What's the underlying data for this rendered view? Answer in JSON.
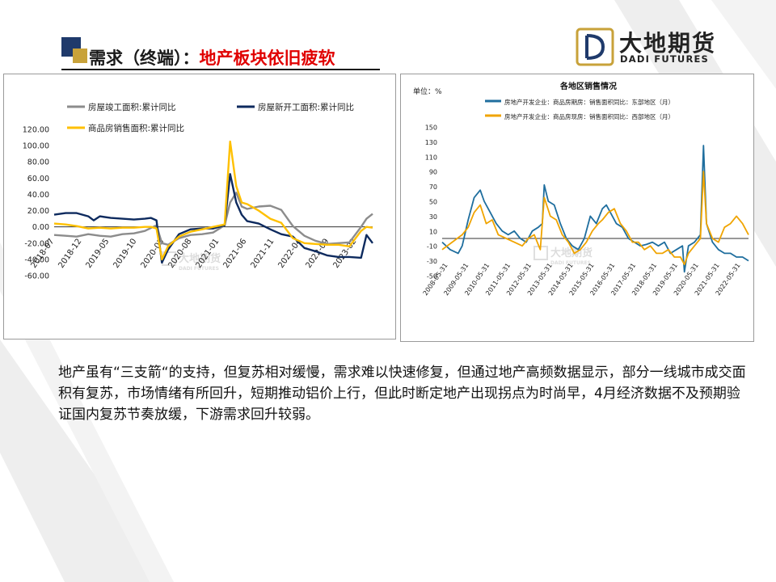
{
  "header": {
    "title_prefix": "需求（终端）：",
    "title_highlight": "地产板块依旧疲软"
  },
  "logo": {
    "cn": "大地期货",
    "en": "DADI FUTURES",
    "watermark_cn": "大地期货",
    "watermark_en": "DADI FUTURES"
  },
  "body_text": "地产虽有“三支箭“的支持，但复苏相对缓慢，需求难以快速修复，但通过地产高频数据显示，部分一线城市成交面积有复苏，市场情绪有所回升，短期推动铝价上行，但此时断定地产出现拐点为时尚早，4月经济数据不及预期验证国内复苏节奏放缓，下游需求回升较弱。",
  "colors": {
    "title_highlight": "#e00000",
    "deco_gray": "#eeeeee",
    "mark_navy": "#1f3a6b",
    "mark_gold": "#c8a23a"
  },
  "chart_data": [
    {
      "type": "line",
      "title": "",
      "xlabel": "",
      "ylabel": "",
      "ylim": [
        -60,
        120
      ],
      "yticks": [
        "120.00",
        "100.00",
        "80.00",
        "60.00",
        "40.00",
        "20.00",
        "0.00",
        "-20.00",
        "-40.00",
        "-60.00"
      ],
      "categories": [
        "2018-07",
        "2018-12",
        "2019-05",
        "2019-10",
        "2020-03",
        "2020-08",
        "2021-01",
        "2021-06",
        "2021-11",
        "2022-04",
        "2022-09",
        "2023-02"
      ],
      "x_range": [
        2018.5,
        2023.17
      ],
      "grid": false,
      "legend": "top",
      "series": [
        {
          "name": "房屋竣工面积:累计同比",
          "color": "#8c8c8c",
          "x": [
            2018.5,
            2018.67,
            2018.83,
            2019.0,
            2019.17,
            2019.33,
            2019.5,
            2019.67,
            2019.83,
            2020.0,
            2020.08,
            2020.17,
            2020.33,
            2020.5,
            2020.67,
            2020.83,
            2021.0,
            2021.08,
            2021.17,
            2021.25,
            2021.33,
            2021.5,
            2021.67,
            2021.83,
            2022.0,
            2022.17,
            2022.33,
            2022.5,
            2022.67,
            2022.83,
            2023.0,
            2023.08,
            2023.17
          ],
          "values": [
            -10,
            -11,
            -12,
            -9,
            -11,
            -12,
            -9,
            -8,
            -5,
            2,
            -20,
            -22,
            -14,
            -10,
            -9,
            -7,
            2,
            30,
            42,
            25,
            22,
            25,
            26,
            21,
            1,
            -11,
            -17,
            -21,
            -20,
            -19,
            0,
            10,
            16
          ]
        },
        {
          "name": "房屋新开工面积:累计同比",
          "color": "#0d2a5e",
          "x": [
            2018.5,
            2018.67,
            2018.83,
            2019.0,
            2019.08,
            2019.17,
            2019.33,
            2019.5,
            2019.67,
            2019.83,
            2019.92,
            2020.0,
            2020.08,
            2020.17,
            2020.33,
            2020.5,
            2020.67,
            2020.83,
            2021.0,
            2021.08,
            2021.17,
            2021.25,
            2021.33,
            2021.5,
            2021.67,
            2021.83,
            2022.0,
            2022.17,
            2022.33,
            2022.5,
            2022.67,
            2022.83,
            2023.0,
            2023.08,
            2023.17
          ],
          "values": [
            15,
            17,
            17,
            13,
            8,
            13,
            11,
            10,
            9,
            10,
            11,
            8,
            -44,
            -28,
            -9,
            -3,
            -2,
            -2,
            2,
            65,
            30,
            15,
            7,
            4,
            -3,
            -9,
            -12,
            -26,
            -30,
            -35,
            -37,
            -37,
            -38,
            -10,
            -20
          ]
        },
        {
          "name": "商品房销售面积:累计同比",
          "color": "#ffc000",
          "x": [
            2018.5,
            2018.67,
            2018.83,
            2019.0,
            2019.17,
            2019.33,
            2019.5,
            2019.67,
            2019.83,
            2019.92,
            2020.0,
            2020.08,
            2020.17,
            2020.33,
            2020.5,
            2020.67,
            2020.83,
            2021.0,
            2021.08,
            2021.17,
            2021.25,
            2021.33,
            2021.5,
            2021.67,
            2021.83,
            2022.0,
            2022.17,
            2022.33,
            2022.5,
            2022.67,
            2022.83,
            2023.0,
            2023.08,
            2023.17
          ],
          "values": [
            4,
            3,
            1,
            -2,
            -1,
            -2,
            -1,
            -1,
            0,
            0,
            -2,
            -40,
            -24,
            -12,
            -6,
            -3,
            0,
            3,
            105,
            50,
            30,
            28,
            20,
            10,
            5,
            -14,
            -20,
            -21,
            -22,
            -22,
            -24,
            -5,
            0,
            -1
          ]
        }
      ]
    },
    {
      "type": "line",
      "title": "各地区销售情况",
      "ylabel": "单位：%",
      "xlabel": "",
      "ylim": [
        -50,
        150
      ],
      "yticks": [
        "150",
        "130",
        "110",
        "90",
        "70",
        "50",
        "30",
        "10",
        "-10",
        "-30",
        "-50"
      ],
      "categories": [
        "2008-05-31",
        "2009-05-31",
        "2010-05-31",
        "2011-05-31",
        "2012-05-31",
        "2013-05-31",
        "2014-05-31",
        "2015-05-31",
        "2016-05-31",
        "2017-05-31",
        "2018-05-31",
        "2019-05-31",
        "2020-05-31",
        "2021-05-31",
        "2022-05-31"
      ],
      "x_range": [
        2008.0,
        2023.3
      ],
      "grid": false,
      "legend": "top",
      "series": [
        {
          "name": "房地产开发企业：商品房期房：销售面积同比：东部地区（月）",
          "color": "#1f6e9e",
          "x": [
            2008.0,
            2008.4,
            2008.8,
            2009.0,
            2009.3,
            2009.6,
            2009.9,
            2010.1,
            2010.4,
            2010.7,
            2011.0,
            2011.3,
            2011.6,
            2011.9,
            2012.2,
            2012.5,
            2012.8,
            2013.0,
            2013.1,
            2013.3,
            2013.6,
            2013.9,
            2014.2,
            2014.5,
            2014.8,
            2015.1,
            2015.4,
            2015.7,
            2016.0,
            2016.2,
            2016.4,
            2016.7,
            2017.0,
            2017.3,
            2017.6,
            2017.9,
            2018.2,
            2018.5,
            2018.8,
            2019.1,
            2019.4,
            2019.7,
            2020.0,
            2020.1,
            2020.3,
            2020.6,
            2020.9,
            2021.05,
            2021.2,
            2021.5,
            2021.8,
            2022.1,
            2022.4,
            2022.7,
            2023.0,
            2023.3
          ],
          "values": [
            -5,
            -15,
            -20,
            -10,
            25,
            55,
            65,
            50,
            35,
            20,
            10,
            5,
            10,
            0,
            -5,
            10,
            15,
            20,
            72,
            50,
            45,
            20,
            0,
            -10,
            -15,
            0,
            30,
            20,
            40,
            45,
            35,
            20,
            15,
            0,
            -5,
            -10,
            -8,
            -5,
            -10,
            -5,
            -20,
            -15,
            -10,
            -45,
            -10,
            -5,
            5,
            125,
            20,
            -5,
            -15,
            -20,
            -20,
            -25,
            -25,
            -30
          ]
        },
        {
          "name": "房地产开发企业：商品房现房：销售面积同比：西部地区（月）",
          "color": "#f0a400",
          "x": [
            2008.0,
            2008.5,
            2009.0,
            2009.3,
            2009.6,
            2009.9,
            2010.2,
            2010.5,
            2010.8,
            2011.2,
            2011.6,
            2012.0,
            2012.3,
            2012.6,
            2012.9,
            2013.1,
            2013.4,
            2013.7,
            2014.0,
            2014.3,
            2014.6,
            2014.9,
            2015.2,
            2015.5,
            2015.8,
            2016.0,
            2016.3,
            2016.6,
            2016.9,
            2017.2,
            2017.5,
            2017.8,
            2018.1,
            2018.4,
            2018.7,
            2019.0,
            2019.3,
            2019.6,
            2019.9,
            2020.1,
            2020.3,
            2020.6,
            2020.9,
            2021.05,
            2021.2,
            2021.5,
            2021.8,
            2022.1,
            2022.4,
            2022.7,
            2023.0,
            2023.3
          ],
          "values": [
            -15,
            -5,
            5,
            15,
            35,
            45,
            20,
            25,
            5,
            0,
            -5,
            -10,
            0,
            5,
            -15,
            55,
            30,
            25,
            5,
            -5,
            -20,
            -15,
            -5,
            10,
            20,
            25,
            35,
            40,
            20,
            10,
            -5,
            -5,
            -15,
            -10,
            -20,
            -20,
            -15,
            -25,
            -25,
            -35,
            -20,
            -10,
            0,
            90,
            20,
            0,
            -5,
            15,
            20,
            30,
            20,
            5
          ]
        }
      ]
    }
  ]
}
